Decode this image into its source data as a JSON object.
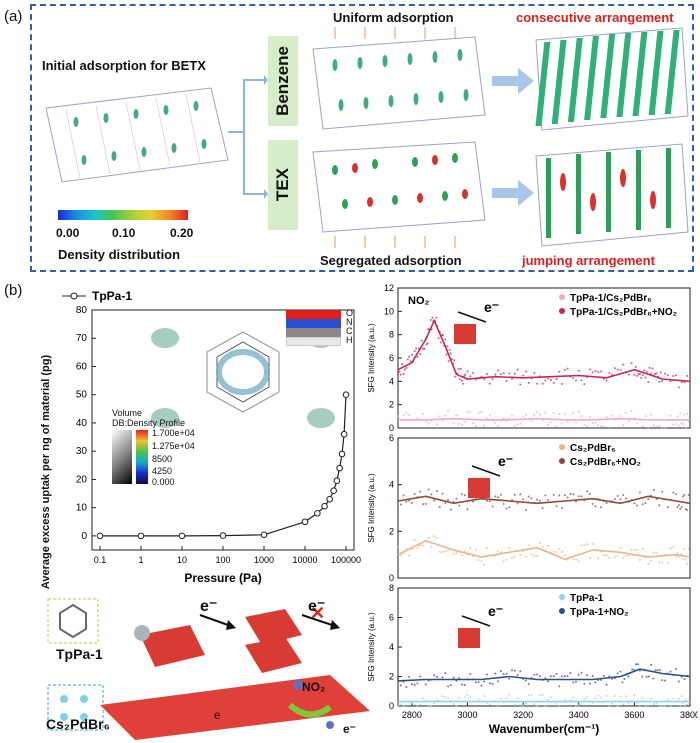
{
  "panel_a": {
    "label": "(a)",
    "initial_title": "Initial adsorption for BETX",
    "benzene_label": "Benzene",
    "tex_label": "TEX",
    "uniform": "Uniform adsorption",
    "segregated": "Segregated adsorption",
    "consecutive": "consecutive arrangement",
    "jumping": "jumping arrangement",
    "colorbar_ticks": [
      "0.00",
      "0.10",
      "0.20"
    ],
    "colorbar_title": "Density distribution"
  },
  "panel_b": {
    "label": "(b)",
    "legend": "TpPa-1",
    "inset_title_1": "Volume",
    "inset_title_2": "DB:Density Profile",
    "inset_ticks": [
      "1.700e+04",
      "1.275e+04",
      "8500",
      "4250",
      "0.000"
    ],
    "atoms": [
      "O",
      "N",
      "C",
      "H"
    ],
    "tppa_label": "TpPa-1",
    "cs_label": "Cs₂PdBr₆",
    "no2_label": "NO₂",
    "e_label": "e⁻",
    "e_label_small": "e"
  },
  "chart_data": [
    {
      "type": "line",
      "title": "",
      "xlabel": "Pressure (Pa)",
      "ylabel": "Average excess uptak per ng of material (pg)",
      "xscale": "log",
      "xticks": [
        "0.1",
        "1",
        "10",
        "100",
        "1000",
        "10000",
        "100000"
      ],
      "ylim": [
        -5,
        80
      ],
      "yticks": [
        "0",
        "10",
        "20",
        "30",
        "40",
        "50",
        "60",
        "70",
        "80"
      ],
      "series": [
        {
          "name": "TpPa-1",
          "x": [
            0.1,
            1,
            10,
            100,
            1000,
            10000,
            20000,
            30000,
            40000,
            50000,
            60000,
            70000,
            80000,
            90000,
            100000
          ],
          "y": [
            0,
            0,
            0,
            0.1,
            0.4,
            5,
            8,
            10.5,
            13,
            16,
            19.5,
            24,
            29,
            36,
            50
          ]
        }
      ]
    },
    {
      "type": "scatter",
      "ylabel": "SFG Intensity (a.u.)",
      "ylim": [
        0,
        12
      ],
      "yticks": [
        "0",
        "2",
        "4",
        "6",
        "8",
        "10",
        "12"
      ],
      "annotation": "NO₂",
      "series": [
        {
          "name": "TpPa-1/Cs₂PdBr₆",
          "color": "#f1a9c4",
          "x": [
            2750,
            2850,
            2950,
            3050,
            3150,
            3250,
            3350,
            3450,
            3550,
            3650,
            3750,
            3800
          ],
          "y": [
            0.7,
            0.7,
            0.8,
            0.7,
            0.7,
            0.8,
            0.7,
            0.7,
            0.8,
            0.7,
            0.7,
            0.7
          ]
        },
        {
          "name": "TpPa-1/Cs₂PdBr₆+NO₂",
          "color": "#c8284e",
          "x": [
            2750,
            2800,
            2850,
            2880,
            2920,
            2960,
            3000,
            3100,
            3200,
            3300,
            3400,
            3500,
            3600,
            3650,
            3700,
            3800
          ],
          "y": [
            5.0,
            5.6,
            7.6,
            9.2,
            7.0,
            4.6,
            4.2,
            4.4,
            4.3,
            4.4,
            4.5,
            4.3,
            5.0,
            4.6,
            4.2,
            4.0
          ]
        }
      ]
    },
    {
      "type": "scatter",
      "ylabel": "SFG Intensity (a.u.)",
      "ylim": [
        0,
        6
      ],
      "yticks": [
        "0",
        "2",
        "4",
        "6"
      ],
      "series": [
        {
          "name": "Cs₂PdBr₆",
          "color": "#e8b48e",
          "x": [
            2750,
            2850,
            2950,
            3050,
            3150,
            3250,
            3350,
            3450,
            3550,
            3650,
            3750,
            3800
          ],
          "y": [
            1.0,
            1.6,
            1.2,
            0.9,
            1.1,
            1.3,
            0.8,
            1.2,
            1.1,
            0.9,
            1.0,
            0.9
          ]
        },
        {
          "name": "Cs₂PdBr₆+NO₂",
          "color": "#8c4a3c",
          "x": [
            2750,
            2850,
            2950,
            3050,
            3150,
            3250,
            3350,
            3450,
            3550,
            3650,
            3750,
            3800
          ],
          "y": [
            3.3,
            3.5,
            3.2,
            3.4,
            3.3,
            3.2,
            3.3,
            3.4,
            3.2,
            3.5,
            3.3,
            3.2
          ]
        }
      ]
    },
    {
      "type": "scatter",
      "xlabel": "Wavenumber(cm⁻¹)",
      "xlim": [
        2750,
        3800
      ],
      "xticks": [
        "2800",
        "3000",
        "3200",
        "3400",
        "3600",
        "3800"
      ],
      "ylabel": "SFG Intensity (a.u.)",
      "ylim": [
        0,
        8
      ],
      "yticks": [
        "0",
        "2",
        "4",
        "6",
        "8"
      ],
      "series": [
        {
          "name": "TpPa-1",
          "color": "#8fd3f0",
          "x": [
            2750,
            2850,
            2950,
            3050,
            3150,
            3250,
            3350,
            3450,
            3550,
            3650,
            3750,
            3800
          ],
          "y": [
            0.3,
            0.3,
            0.3,
            0.3,
            0.3,
            0.3,
            0.3,
            0.3,
            0.3,
            0.3,
            0.3,
            0.3
          ]
        },
        {
          "name": "TpPa-1+NO₂",
          "color": "#2e4f8a",
          "x": [
            2750,
            2850,
            2950,
            3050,
            3150,
            3250,
            3350,
            3450,
            3550,
            3620,
            3700,
            3800
          ],
          "y": [
            1.7,
            1.8,
            1.8,
            1.8,
            2.0,
            1.8,
            1.8,
            1.8,
            2.0,
            2.5,
            2.2,
            2.0
          ]
        }
      ]
    }
  ]
}
